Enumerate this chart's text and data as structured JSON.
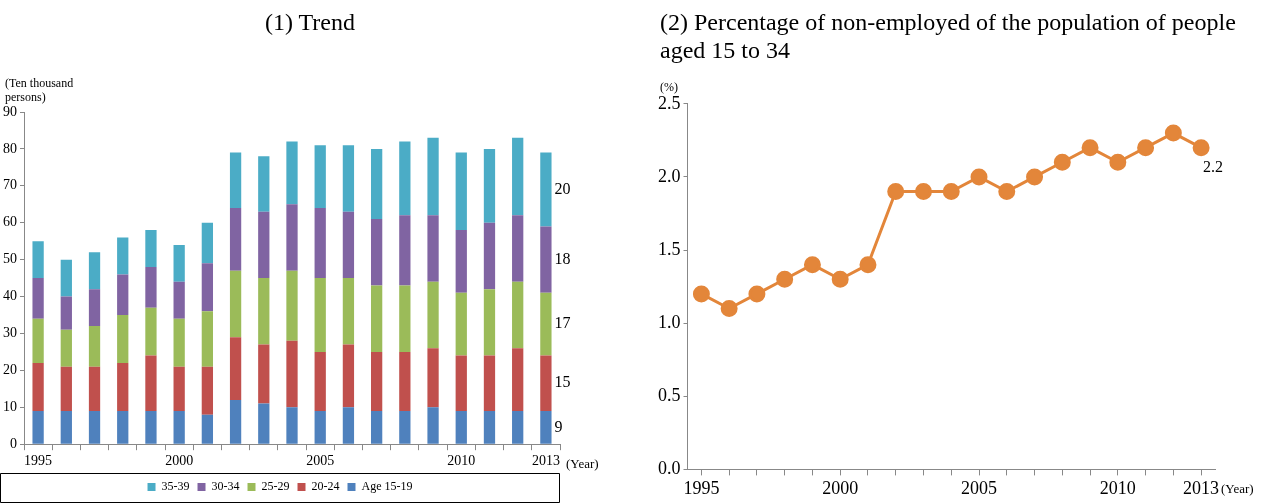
{
  "chart_data": [
    {
      "type": "bar",
      "title": "(1) Trend",
      "ylabel": "(Ten thousand persons)",
      "xlabel": "(Year)",
      "stacked": true,
      "legend": "bottom",
      "grid": false,
      "categories": [
        "1995",
        null,
        null,
        null,
        null,
        "2000",
        null,
        null,
        null,
        null,
        "2005",
        null,
        null,
        null,
        null,
        "2010",
        null,
        null,
        "2013"
      ],
      "ylim": [
        0,
        90
      ],
      "yticks": [
        0,
        10,
        20,
        30,
        40,
        50,
        60,
        70,
        80,
        90
      ],
      "series": [
        {
          "name": "Age 15-19",
          "color": "#4f81bd",
          "values": [
            9,
            9,
            9,
            9,
            9,
            9,
            8,
            12,
            11,
            10,
            9,
            10,
            9,
            9,
            10,
            9,
            9,
            9,
            9
          ],
          "value_labels": [
            null,
            null,
            null,
            null,
            null,
            null,
            null,
            null,
            null,
            null,
            null,
            null,
            null,
            null,
            null,
            null,
            null,
            null,
            "9"
          ]
        },
        {
          "name": "20-24",
          "color": "#c0504d",
          "values": [
            13,
            12,
            12,
            13,
            15,
            12,
            13,
            17,
            16,
            18,
            16,
            17,
            16,
            16,
            16,
            15,
            15,
            17,
            15
          ],
          "value_labels": [
            null,
            null,
            null,
            null,
            null,
            null,
            null,
            null,
            null,
            null,
            null,
            null,
            null,
            null,
            null,
            null,
            null,
            null,
            "15"
          ]
        },
        {
          "name": "25-29",
          "color": "#9bbb59",
          "values": [
            12,
            10,
            11,
            13,
            13,
            13,
            15,
            18,
            18,
            19,
            20,
            18,
            18,
            18,
            18,
            17,
            18,
            18,
            17
          ],
          "value_labels": [
            null,
            null,
            null,
            null,
            null,
            null,
            null,
            null,
            null,
            null,
            null,
            null,
            null,
            null,
            null,
            null,
            null,
            null,
            "17"
          ]
        },
        {
          "name": "30-34",
          "color": "#8064a2",
          "values": [
            11,
            9,
            10,
            11,
            11,
            10,
            13,
            17,
            18,
            18,
            19,
            18,
            18,
            19,
            18,
            17,
            18,
            18,
            18
          ],
          "value_labels": [
            null,
            null,
            null,
            null,
            null,
            null,
            null,
            null,
            null,
            null,
            null,
            null,
            null,
            null,
            null,
            null,
            null,
            null,
            "18"
          ]
        },
        {
          "name": "35-39",
          "color": "#4bacc6",
          "values": [
            10,
            10,
            10,
            10,
            10,
            10,
            11,
            15,
            15,
            17,
            17,
            18,
            19,
            20,
            21,
            21,
            20,
            21,
            20
          ],
          "value_labels": [
            null,
            null,
            null,
            null,
            null,
            null,
            null,
            null,
            null,
            null,
            null,
            null,
            null,
            null,
            null,
            null,
            null,
            null,
            "20"
          ]
        }
      ]
    },
    {
      "type": "line",
      "title": "(2) Percentage of non-employed of the population of people aged 15 to 34",
      "ylabel": "(%)",
      "xlabel": "(Year)",
      "grid": false,
      "legend": false,
      "marker": "circle",
      "line_style": "solid",
      "categories": [
        "1995",
        null,
        null,
        null,
        null,
        "2000",
        null,
        null,
        null,
        null,
        "2005",
        null,
        null,
        null,
        null,
        "2010",
        null,
        null,
        "2013"
      ],
      "ylim": [
        0,
        2.5
      ],
      "yticks": [
        {
          "value": 0,
          "label": "0.0"
        },
        {
          "value": 0.5,
          "label": "0.5"
        },
        {
          "value": 1,
          "label": "1.0"
        },
        {
          "value": 1.5,
          "label": "1.5"
        },
        {
          "value": 2,
          "label": "2.0"
        },
        {
          "value": 2.5,
          "label": "2.5"
        }
      ],
      "series": [
        {
          "color": "#e3863a",
          "values": [
            1.2,
            1.1,
            1.2,
            1.3,
            1.4,
            1.3,
            1.4,
            1.9,
            1.9,
            1.9,
            2.0,
            1.9,
            2.0,
            2.1,
            2.2,
            2.1,
            2.2,
            2.3,
            2.2
          ],
          "value_labels": [
            null,
            null,
            null,
            null,
            null,
            null,
            null,
            null,
            null,
            null,
            null,
            null,
            null,
            null,
            null,
            null,
            null,
            null,
            "2.2"
          ]
        }
      ]
    }
  ]
}
